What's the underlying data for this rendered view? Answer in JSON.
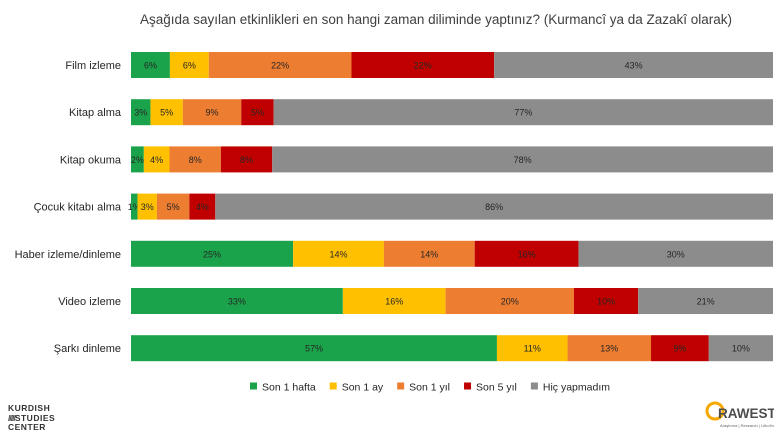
{
  "chart_data": {
    "type": "bar",
    "orientation": "horizontal",
    "stacked": true,
    "normalized_percent": true,
    "title": "Aşağıda sayılan etkinlikleri en son hangi zaman diliminde yaptınız? (Kurmancî ya da Zazakî olarak)",
    "categories": [
      "Film izleme",
      "Kitap alma",
      "Kitap okuma",
      "Çocuk kitabı alma",
      "Haber izleme/dinleme",
      "Video izleme",
      "Şarkı dinleme"
    ],
    "series": [
      {
        "name": "Son 1 hafta",
        "color": "#1aa34a",
        "values": [
          6,
          3,
          2,
          1,
          25,
          33,
          57
        ],
        "labels": [
          "6%",
          "3%",
          "2%",
          "1%",
          "25%",
          "33%",
          "57%"
        ]
      },
      {
        "name": "Son 1 ay",
        "color": "#ffc000",
        "values": [
          6,
          5,
          4,
          3,
          14,
          16,
          11
        ],
        "labels": [
          "6%",
          "5%",
          "4%",
          "3%",
          "14%",
          "16%",
          "11%"
        ]
      },
      {
        "name": "Son 1 yıl",
        "color": "#ed7d31",
        "values": [
          22,
          9,
          8,
          5,
          14,
          20,
          13
        ],
        "labels": [
          "22%",
          "9%",
          "8%",
          "5%",
          "14%",
          "20%",
          "13%"
        ]
      },
      {
        "name": "Son 5 yıl",
        "color": "#c00000",
        "values": [
          22,
          5,
          8,
          4,
          16,
          10,
          9
        ],
        "labels": [
          "22%",
          "5%",
          "8%",
          "4%",
          "16%",
          "10%",
          "9%"
        ]
      },
      {
        "name": "Hiç yapmadım",
        "color": "#8c8c8c",
        "values": [
          43,
          77,
          78,
          86,
          30,
          21,
          10
        ],
        "labels": [
          "43%",
          "77%",
          "78%",
          "86%",
          "30%",
          "21%",
          "10%"
        ]
      }
    ],
    "legend_position": "bottom",
    "grid": false
  },
  "logos": {
    "kurdish_studies": [
      "KURDISH",
      "STUDIES",
      "CENTER"
    ],
    "rawest": {
      "name": "RAWEST",
      "tagline": "Araştırma | Research | Lêkolîn",
      "accent_color": "#f5a800"
    }
  }
}
